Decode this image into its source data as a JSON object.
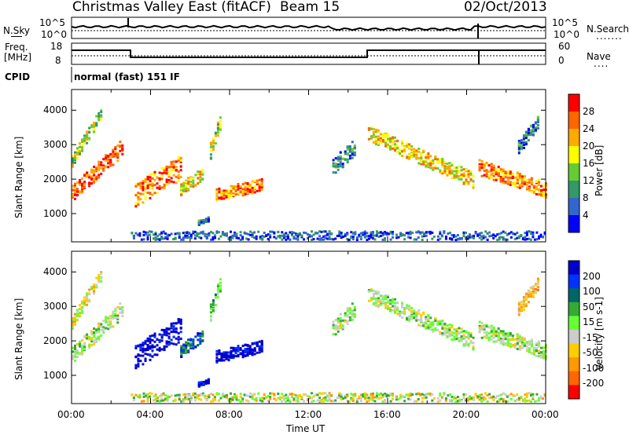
{
  "header": {
    "site": "Christmas Valley East (fitACF)",
    "beam": "Beam 15",
    "date": "02/Oct/2013"
  },
  "sky_panel": {
    "left_label": "N.Sky",
    "right_label": "N.Search",
    "left_ticks": [
      "10^5",
      "10^0"
    ],
    "right_ticks": [
      "10^5",
      "10^0"
    ]
  },
  "freq_panel": {
    "left_label_line1": "Freq.",
    "left_label_line2": "[MHz]",
    "left_ticks": [
      "18",
      "8"
    ],
    "right_label": "Nave",
    "right_ticks": [
      "60",
      "0"
    ]
  },
  "cpid": {
    "label": "CPID",
    "mode": "normal (fast) 151 IF"
  },
  "chart_data": [
    {
      "type": "heatmap",
      "name": "power-panel",
      "ylabel": "Slant Range [km]",
      "ylim": [
        180,
        4600
      ],
      "yticks": [
        "1000",
        "2000",
        "3000",
        "4000"
      ],
      "colorbar": {
        "title": "Power [dB]",
        "ticks": [
          "28",
          "24",
          "20",
          "16",
          "12",
          "8",
          "4"
        ],
        "colors": [
          "#ff0000",
          "#ff6600",
          "#ffaa00",
          "#ffff00",
          "#66cc33",
          "#339966",
          "#3366cc",
          "#0000ff"
        ]
      }
    },
    {
      "type": "heatmap",
      "name": "velocity-panel",
      "xlabel": "Time UT",
      "ylabel": "Slant Range [km]",
      "ylim": [
        180,
        4600
      ],
      "yticks": [
        "1000",
        "2000",
        "3000",
        "4000"
      ],
      "xticks": [
        "00:00",
        "04:00",
        "08:00",
        "12:00",
        "16:00",
        "20:00",
        "00:00"
      ],
      "colorbar": {
        "title": "Velocity [m s-1]",
        "ticks": [
          "200",
          "100",
          "50",
          "15",
          "-15",
          "-50",
          "-100",
          "-200"
        ],
        "colors": [
          "#0000cc",
          "#0033ff",
          "#006666",
          "#33aa33",
          "#66ff33",
          "#cccccc",
          "#ffcc00",
          "#ff9900",
          "#ff6600",
          "#ff0000"
        ]
      }
    }
  ]
}
